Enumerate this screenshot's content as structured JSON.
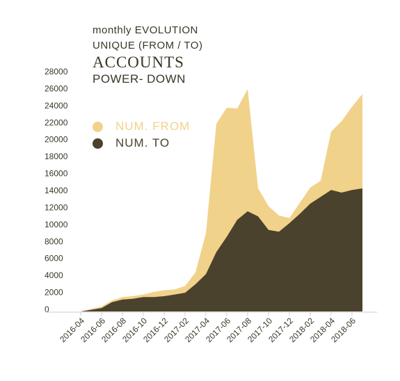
{
  "title": {
    "line1": "monthly EVOLUTION",
    "line2": "UNIQUE (FROM / TO)",
    "line3": "ACCOUNTS",
    "line4": "POWER- DOWN"
  },
  "colors": {
    "from": "#f1d28a",
    "to": "#4a422c",
    "axis": "#cccccc",
    "text": "#3a3626"
  },
  "chart_data": {
    "type": "area",
    "x": [
      "2016-04",
      "2016-05",
      "2016-06",
      "2016-07",
      "2016-08",
      "2016-09",
      "2016-10",
      "2016-11",
      "2016-12",
      "2017-01",
      "2017-02",
      "2017-03",
      "2017-04",
      "2017-05",
      "2017-06",
      "2017-07",
      "2017-08",
      "2017-09",
      "2017-10",
      "2017-11",
      "2017-12",
      "2018-01",
      "2018-02",
      "2018-03",
      "2018-04",
      "2018-05",
      "2018-06",
      "2018-07"
    ],
    "x_tick_labels": [
      "2016-04",
      "2016-06",
      "2016-08",
      "2016-10",
      "2016-12",
      "2017-02",
      "2017-04",
      "2017-06",
      "2017-08",
      "2017-10",
      "2017-12",
      "2018-02",
      "2018-04",
      "2018-06"
    ],
    "series": [
      {
        "name": "NUM. FROM",
        "values": [
          0,
          300,
          600,
          1300,
          1700,
          1800,
          2000,
          2300,
          2500,
          2600,
          3000,
          4600,
          9200,
          22100,
          24000,
          23900,
          26200,
          14500,
          12400,
          11300,
          11000,
          12800,
          14600,
          15400,
          21200,
          22400,
          24100,
          25600
        ]
      },
      {
        "name": "NUM. TO",
        "values": [
          0,
          200,
          400,
          1100,
          1400,
          1500,
          1700,
          1700,
          1800,
          2000,
          2200,
          3200,
          4400,
          7000,
          8800,
          10800,
          11800,
          11200,
          9600,
          9400,
          10400,
          11500,
          12700,
          13500,
          14300,
          14000,
          14300,
          14500
        ]
      }
    ],
    "ylim": [
      0,
      28000
    ],
    "yticks": [
      0,
      2000,
      4000,
      6000,
      8000,
      10000,
      12000,
      14000,
      16000,
      18000,
      20000,
      22000,
      24000,
      26000,
      28000
    ],
    "legend": "top-left",
    "grid": false
  }
}
